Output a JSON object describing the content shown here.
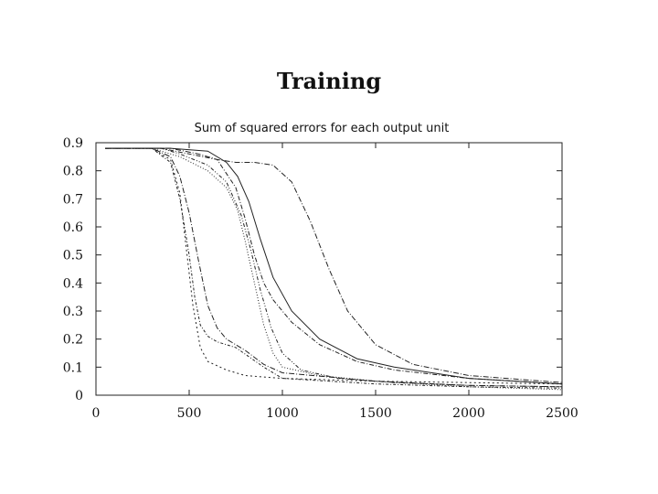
{
  "slide": {
    "title": "Training"
  },
  "chart_data": {
    "type": "line",
    "title": "Sum of squared errors for each output unit",
    "xlabel": "",
    "ylabel": "",
    "xlim": [
      0,
      2500
    ],
    "ylim": [
      0,
      0.9
    ],
    "xticks": [
      0,
      500,
      1000,
      1500,
      2000,
      2500
    ],
    "yticks": [
      0,
      0.1,
      0.2,
      0.3,
      0.4,
      0.5,
      0.6,
      0.7,
      0.8,
      0.9
    ],
    "grid": false,
    "legend": "none",
    "series": [
      {
        "x": [
          50,
          300,
          400,
          450,
          480,
          520,
          560,
          600,
          700,
          800,
          1000,
          1500,
          2000,
          2500
        ],
        "values": [
          0.88,
          0.88,
          0.84,
          0.72,
          0.55,
          0.32,
          0.17,
          0.12,
          0.09,
          0.07,
          0.06,
          0.05,
          0.045,
          0.04
        ],
        "dash": "2,3"
      },
      {
        "x": [
          50,
          300,
          400,
          450,
          500,
          530,
          560,
          600,
          650,
          750,
          900,
          1000,
          1500,
          2000,
          2500
        ],
        "values": [
          0.88,
          0.88,
          0.83,
          0.7,
          0.5,
          0.35,
          0.25,
          0.21,
          0.19,
          0.17,
          0.1,
          0.06,
          0.04,
          0.03,
          0.025
        ],
        "dash": "3,2,1,2"
      },
      {
        "x": [
          50,
          300,
          400,
          450,
          500,
          550,
          600,
          650,
          700,
          800,
          900,
          1000,
          1500,
          2000,
          2500
        ],
        "values": [
          0.88,
          0.88,
          0.85,
          0.78,
          0.65,
          0.48,
          0.32,
          0.24,
          0.2,
          0.16,
          0.11,
          0.08,
          0.05,
          0.035,
          0.03
        ],
        "dash": "6,2,1,2"
      },
      {
        "x": [
          50,
          300,
          450,
          600,
          700,
          760,
          800,
          850,
          900,
          950,
          1000,
          1200,
          1500,
          2000,
          2500
        ],
        "values": [
          0.88,
          0.88,
          0.85,
          0.8,
          0.74,
          0.66,
          0.55,
          0.4,
          0.25,
          0.15,
          0.1,
          0.07,
          0.05,
          0.03,
          0.02
        ],
        "dash": "1,2"
      },
      {
        "x": [
          50,
          350,
          450,
          600,
          700,
          780,
          830,
          880,
          940,
          1000,
          1100,
          1300,
          1600,
          2000,
          2500
        ],
        "values": [
          0.88,
          0.88,
          0.86,
          0.82,
          0.76,
          0.64,
          0.52,
          0.38,
          0.24,
          0.15,
          0.09,
          0.06,
          0.045,
          0.035,
          0.03
        ],
        "dash": "4,2,1,2,1,2"
      },
      {
        "x": [
          50,
          350,
          500,
          650,
          750,
          800,
          850,
          900,
          950,
          1050,
          1200,
          1400,
          1600,
          2000,
          2500
        ],
        "values": [
          0.88,
          0.88,
          0.86,
          0.84,
          0.74,
          0.63,
          0.5,
          0.4,
          0.34,
          0.26,
          0.18,
          0.12,
          0.09,
          0.06,
          0.04
        ],
        "dash": "5,2,1,2"
      },
      {
        "x": [
          50,
          400,
          600,
          700,
          760,
          820,
          880,
          950,
          1050,
          1200,
          1400,
          1600,
          2000,
          2500
        ],
        "values": [
          0.88,
          0.88,
          0.87,
          0.83,
          0.78,
          0.69,
          0.56,
          0.42,
          0.3,
          0.2,
          0.13,
          0.1,
          0.06,
          0.04
        ],
        "dash": ""
      },
      {
        "x": [
          50,
          400,
          550,
          650,
          750,
          850,
          950,
          1050,
          1150,
          1250,
          1350,
          1500,
          1700,
          2000,
          2500
        ],
        "values": [
          0.88,
          0.88,
          0.86,
          0.84,
          0.83,
          0.83,
          0.82,
          0.76,
          0.62,
          0.45,
          0.3,
          0.18,
          0.11,
          0.07,
          0.045
        ],
        "dash": "6,2,1,2"
      }
    ]
  }
}
